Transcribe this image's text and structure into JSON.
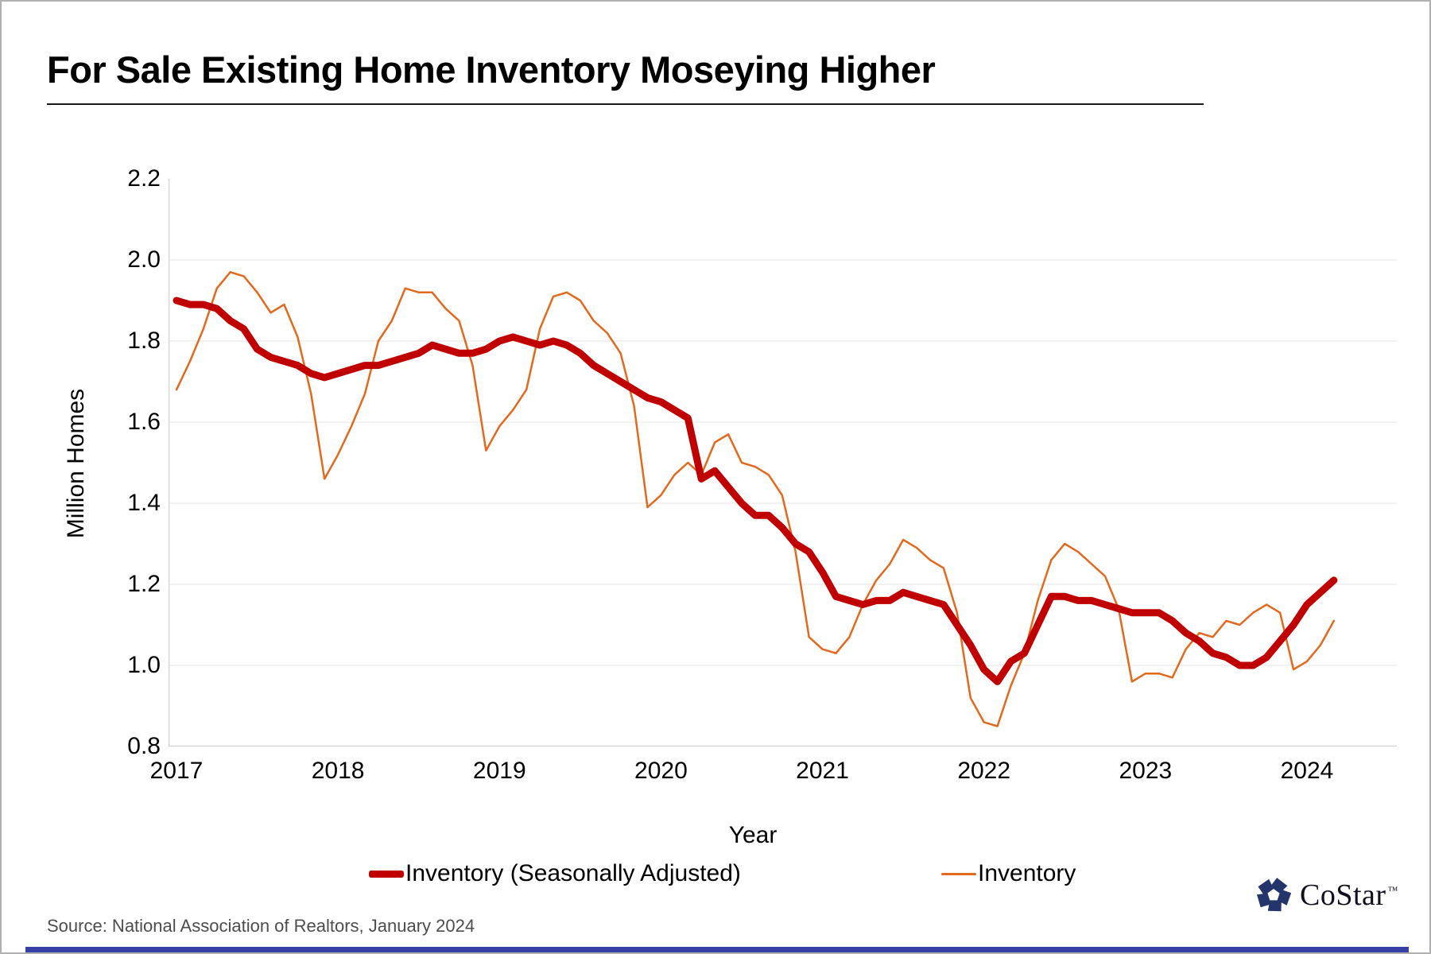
{
  "title": "For Sale Existing Home Inventory Moseying Higher",
  "y_axis_title": "Million Homes",
  "x_axis_title": "Year",
  "legend": {
    "sa_label": "Inventory (Seasonally Adjusted)",
    "nsa_label": "Inventory"
  },
  "footer_source": "Source: National Association of Realtors, January 2024",
  "logo": {
    "text": "CoStar",
    "tm": "™"
  },
  "colors": {
    "sa_line": "#C00000",
    "nsa_line": "#E2691D",
    "grid": "#EDEDED",
    "axis": "#D2D2D2",
    "logo_navy": "#24356B",
    "bottom_bar": "#3640A5"
  },
  "chart_data": {
    "type": "line",
    "title": "For Sale Existing Home Inventory Moseying Higher",
    "xlabel": "Year",
    "ylabel": "Million Homes",
    "x_start": "2017-01",
    "x_end": "2024-03",
    "frequency": "monthly",
    "x_tick_labels": [
      "2017",
      "2018",
      "2019",
      "2020",
      "2021",
      "2022",
      "2023",
      "2024"
    ],
    "y_ticks": [
      2.2,
      2.0,
      1.8,
      1.6,
      1.4,
      1.2,
      1.0,
      0.8
    ],
    "ylim": [
      0.8,
      2.2
    ],
    "grid": "horizontal, very light",
    "legend_position": "bottom",
    "series": [
      {
        "name": "Inventory (Seasonally Adjusted)",
        "color": "#C00000",
        "stroke_width": 9,
        "values": [
          1.9,
          1.89,
          1.89,
          1.88,
          1.85,
          1.83,
          1.78,
          1.76,
          1.75,
          1.74,
          1.72,
          1.71,
          1.72,
          1.73,
          1.74,
          1.74,
          1.75,
          1.76,
          1.77,
          1.79,
          1.78,
          1.77,
          1.77,
          1.78,
          1.8,
          1.81,
          1.8,
          1.79,
          1.8,
          1.79,
          1.77,
          1.74,
          1.72,
          1.7,
          1.68,
          1.66,
          1.65,
          1.63,
          1.61,
          1.46,
          1.48,
          1.44,
          1.4,
          1.37,
          1.37,
          1.34,
          1.3,
          1.28,
          1.23,
          1.17,
          1.16,
          1.15,
          1.16,
          1.16,
          1.18,
          1.17,
          1.16,
          1.15,
          1.1,
          1.05,
          0.99,
          0.96,
          1.01,
          1.03,
          1.1,
          1.17,
          1.17,
          1.16,
          1.16,
          1.15,
          1.14,
          1.13,
          1.13,
          1.13,
          1.11,
          1.08,
          1.06,
          1.03,
          1.02,
          1.0,
          1.0,
          1.02,
          1.06,
          1.1,
          1.15,
          1.18,
          1.21
        ]
      },
      {
        "name": "Inventory",
        "color": "#E2691D",
        "stroke_width": 2.5,
        "values": [
          1.68,
          1.75,
          1.83,
          1.93,
          1.97,
          1.96,
          1.92,
          1.87,
          1.89,
          1.81,
          1.67,
          1.46,
          1.52,
          1.59,
          1.67,
          1.8,
          1.85,
          1.93,
          1.92,
          1.92,
          1.88,
          1.85,
          1.74,
          1.53,
          1.59,
          1.63,
          1.68,
          1.83,
          1.91,
          1.92,
          1.9,
          1.85,
          1.82,
          1.77,
          1.64,
          1.39,
          1.42,
          1.47,
          1.5,
          1.47,
          1.55,
          1.57,
          1.5,
          1.49,
          1.47,
          1.42,
          1.28,
          1.07,
          1.04,
          1.03,
          1.07,
          1.15,
          1.21,
          1.25,
          1.31,
          1.29,
          1.26,
          1.24,
          1.13,
          0.92,
          0.86,
          0.85,
          0.95,
          1.03,
          1.16,
          1.26,
          1.3,
          1.28,
          1.25,
          1.22,
          1.14,
          0.96,
          0.98,
          0.98,
          0.97,
          1.04,
          1.08,
          1.07,
          1.11,
          1.1,
          1.13,
          1.15,
          1.13,
          0.99,
          1.01,
          1.05,
          1.11
        ]
      }
    ]
  }
}
